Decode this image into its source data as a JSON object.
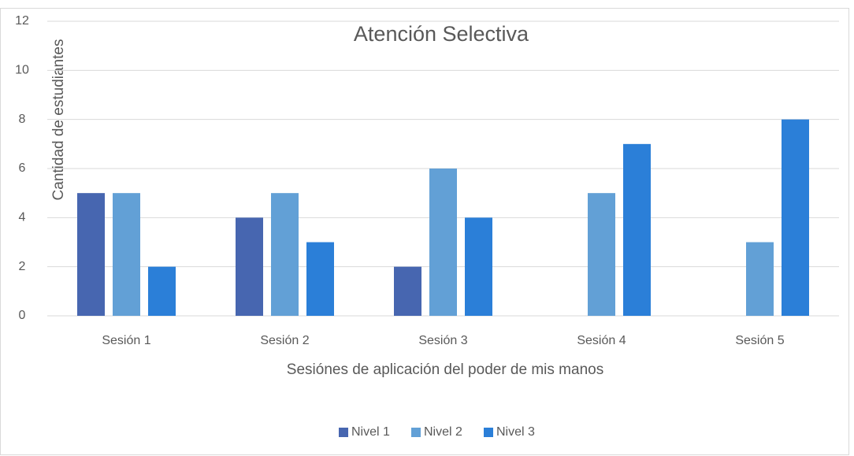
{
  "chart_data": {
    "type": "bar",
    "title": "Atención Selectiva",
    "x_label": "Sesiónes de aplicación del poder de mis manos",
    "y_label": "Cantidad de estudiantes",
    "categories": [
      "Sesión 1",
      "Sesión 2",
      "Sesión 3",
      "Sesión 4",
      "Sesión 5"
    ],
    "series": [
      {
        "name": "Nivel 1",
        "color": "#4766b0",
        "values": [
          5,
          4,
          2,
          0,
          0
        ]
      },
      {
        "name": "Nivel 2",
        "color": "#62a0d6",
        "values": [
          5,
          5,
          6,
          5,
          3
        ]
      },
      {
        "name": "Nivel 3",
        "color": "#2b7fd8",
        "values": [
          2,
          3,
          4,
          7,
          8
        ]
      }
    ],
    "ylim": [
      0,
      12
    ],
    "yticks": [
      0,
      2,
      4,
      6,
      8,
      10,
      12
    ],
    "grid": true,
    "legend": "bottom"
  }
}
